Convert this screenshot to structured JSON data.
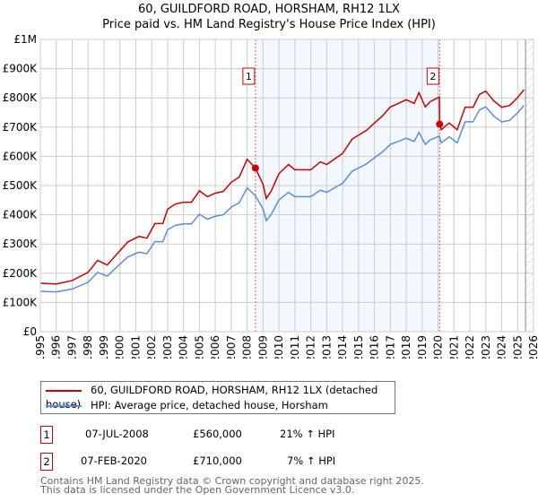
{
  "chart_data": {
    "type": "line",
    "title": "60, GUILDFORD ROAD, HORSHAM, RH12 1LX",
    "subtitle": "Price paid vs. HM Land Registry's House Price Index (HPI)",
    "xlim": [
      1995,
      2026
    ],
    "ylim": [
      0,
      1000000
    ],
    "x_ticks": [
      "1995",
      "1996",
      "1997",
      "1998",
      "1999",
      "2000",
      "2001",
      "2002",
      "2003",
      "2004",
      "2005",
      "2006",
      "2007",
      "2008",
      "2009",
      "2010",
      "2011",
      "2012",
      "2013",
      "2014",
      "2015",
      "2016",
      "2017",
      "2018",
      "2019",
      "2020",
      "2021",
      "2022",
      "2023",
      "2024",
      "2025",
      "2026"
    ],
    "y_ticks": [
      {
        "v": 0,
        "label": "£0"
      },
      {
        "v": 100000,
        "label": "£100K"
      },
      {
        "v": 200000,
        "label": "£200K"
      },
      {
        "v": 300000,
        "label": "£300K"
      },
      {
        "v": 400000,
        "label": "£400K"
      },
      {
        "v": 500000,
        "label": "£500K"
      },
      {
        "v": 600000,
        "label": "£600K"
      },
      {
        "v": 700000,
        "label": "£700K"
      },
      {
        "v": 800000,
        "label": "£800K"
      },
      {
        "v": 900000,
        "label": "£900K"
      },
      {
        "v": 1000000,
        "label": "£1M"
      }
    ],
    "grid": true,
    "series": [
      {
        "name": "60, GUILDFORD ROAD, HORSHAM, RH12 1LX (detached house)",
        "color": "#cc0000",
        "points": [
          [
            1995,
            166
          ],
          [
            1996,
            163
          ],
          [
            1997,
            175
          ],
          [
            1998,
            203
          ],
          [
            1998.6,
            244
          ],
          [
            1999.2,
            228
          ],
          [
            2000,
            277
          ],
          [
            2000.5,
            307
          ],
          [
            2001.2,
            326
          ],
          [
            2001.7,
            320
          ],
          [
            2002.2,
            370
          ],
          [
            2002.7,
            370
          ],
          [
            2003,
            419
          ],
          [
            2003.5,
            437
          ],
          [
            2004,
            443
          ],
          [
            2004.5,
            443
          ],
          [
            2005,
            482
          ],
          [
            2005.5,
            462
          ],
          [
            2006,
            474
          ],
          [
            2006.5,
            480
          ],
          [
            2007,
            511
          ],
          [
            2007.5,
            529
          ],
          [
            2008,
            590
          ],
          [
            2008.52,
            560
          ],
          [
            2009,
            504
          ],
          [
            2009.2,
            456
          ],
          [
            2009.5,
            480
          ],
          [
            2010,
            541
          ],
          [
            2010.6,
            572
          ],
          [
            2011,
            554
          ],
          [
            2012,
            554
          ],
          [
            2012.6,
            581
          ],
          [
            2013,
            572
          ],
          [
            2014,
            610
          ],
          [
            2014.6,
            659
          ],
          [
            2015.5,
            689
          ],
          [
            2016,
            714
          ],
          [
            2016.5,
            738
          ],
          [
            2017,
            769
          ],
          [
            2017.5,
            781
          ],
          [
            2018,
            794
          ],
          [
            2018.5,
            781
          ],
          [
            2018.8,
            818
          ],
          [
            2019.2,
            769
          ],
          [
            2019.5,
            787
          ],
          [
            2020.08,
            803
          ],
          [
            2020.1,
            710
          ],
          [
            2020.2,
            691
          ],
          [
            2020.7,
            714
          ],
          [
            2021.2,
            691
          ],
          [
            2021.7,
            768
          ],
          [
            2022.2,
            768
          ],
          [
            2022.6,
            812
          ],
          [
            2023,
            823
          ],
          [
            2023.5,
            790
          ],
          [
            2024,
            768
          ],
          [
            2024.5,
            774
          ],
          [
            2025,
            801
          ],
          [
            2025.4,
            828
          ]
        ]
      },
      {
        "name": "HPI: Average price, detached house, Horsham",
        "color": "#5b8fd4",
        "points": [
          [
            1995,
            138
          ],
          [
            1996,
            136
          ],
          [
            1997,
            146
          ],
          [
            1998,
            169
          ],
          [
            1998.6,
            203
          ],
          [
            1999.2,
            190
          ],
          [
            2000,
            231
          ],
          [
            2000.5,
            256
          ],
          [
            2001.2,
            272
          ],
          [
            2001.7,
            267
          ],
          [
            2002.2,
            308
          ],
          [
            2002.7,
            308
          ],
          [
            2003,
            349
          ],
          [
            2003.5,
            364
          ],
          [
            2004,
            369
          ],
          [
            2004.5,
            369
          ],
          [
            2005,
            402
          ],
          [
            2005.5,
            385
          ],
          [
            2006,
            395
          ],
          [
            2006.5,
            400
          ],
          [
            2007,
            426
          ],
          [
            2007.5,
            441
          ],
          [
            2008,
            492
          ],
          [
            2008.52,
            465
          ],
          [
            2009,
            420
          ],
          [
            2009.2,
            380
          ],
          [
            2009.5,
            400
          ],
          [
            2010,
            451
          ],
          [
            2010.6,
            477
          ],
          [
            2011,
            462
          ],
          [
            2012,
            462
          ],
          [
            2012.6,
            484
          ],
          [
            2013,
            477
          ],
          [
            2014,
            508
          ],
          [
            2014.6,
            549
          ],
          [
            2015.5,
            574
          ],
          [
            2016,
            595
          ],
          [
            2016.5,
            615
          ],
          [
            2017,
            641
          ],
          [
            2017.5,
            651
          ],
          [
            2018,
            662
          ],
          [
            2018.5,
            651
          ],
          [
            2018.8,
            682
          ],
          [
            2019.2,
            641
          ],
          [
            2019.5,
            656
          ],
          [
            2020.08,
            669
          ],
          [
            2020.2,
            646
          ],
          [
            2020.7,
            667
          ],
          [
            2021.2,
            646
          ],
          [
            2021.7,
            718
          ],
          [
            2022.2,
            718
          ],
          [
            2022.6,
            759
          ],
          [
            2023,
            769
          ],
          [
            2023.5,
            738
          ],
          [
            2024,
            718
          ],
          [
            2024.5,
            723
          ],
          [
            2025,
            749
          ],
          [
            2025.4,
            774
          ]
        ]
      }
    ],
    "value_units": "thousands GBP",
    "sales": [
      {
        "label": "1",
        "x": 2008.52,
        "value": 560
      },
      {
        "label": "2",
        "x": 2020.1,
        "value": 710
      }
    ],
    "shaded_range": [
      2008.52,
      2020.1
    ],
    "forecast_hatch_from": 2025.5,
    "legend_position": "below"
  },
  "title": "60, GUILDFORD ROAD, HORSHAM, RH12 1LX",
  "subtitle": "Price paid vs. HM Land Registry's House Price Index (HPI)",
  "legend": [
    "60, GUILDFORD ROAD, HORSHAM, RH12 1LX (detached house)",
    "HPI: Average price, detached house, Horsham"
  ],
  "transactions": [
    {
      "n": "1",
      "date": "07-JUL-2008",
      "price": "£560,000",
      "hpi": "21% ↑ HPI"
    },
    {
      "n": "2",
      "date": "07-FEB-2020",
      "price": "£710,000",
      "hpi": "7% ↑ HPI"
    }
  ],
  "footer": [
    "Contains HM Land Registry data © Crown copyright and database right 2025.",
    "This data is licensed under the Open Government Licence v3.0."
  ]
}
